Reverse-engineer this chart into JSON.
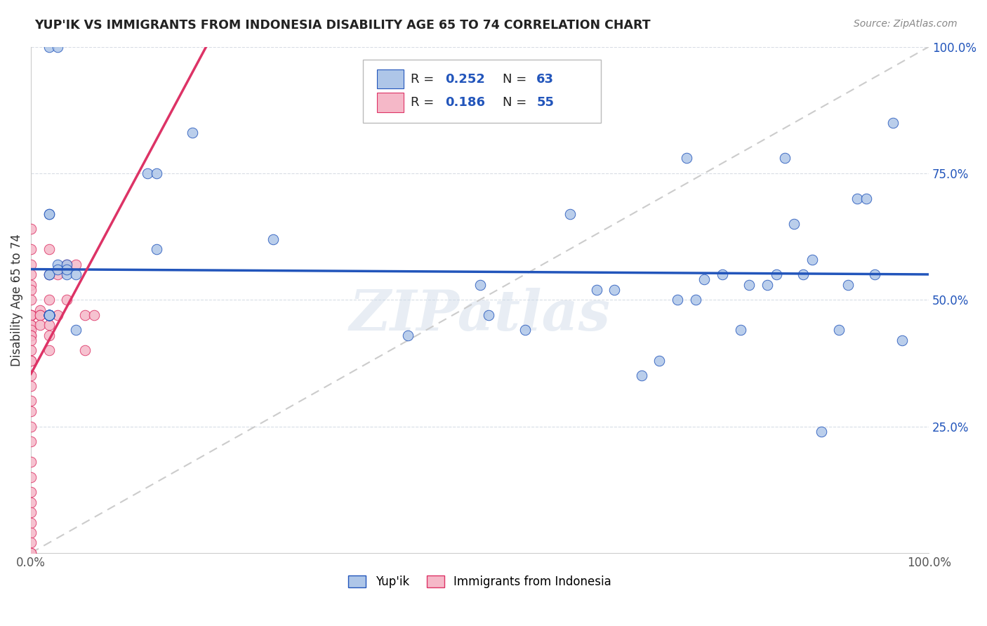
{
  "title": "YUP'IK VS IMMIGRANTS FROM INDONESIA DISABILITY AGE 65 TO 74 CORRELATION CHART",
  "source": "Source: ZipAtlas.com",
  "ylabel": "Disability Age 65 to 74",
  "xmin": 0.0,
  "xmax": 1.0,
  "ymin": 0.0,
  "ymax": 1.0,
  "series1_color": "#aec6e8",
  "series2_color": "#f5b8c8",
  "line1_color": "#2255bb",
  "line2_color": "#dd3366",
  "diagonal_color": "#cccccc",
  "watermark": "ZIPatlas",
  "series1_x": [
    0.13,
    0.14,
    0.02,
    0.03,
    0.02,
    0.02,
    0.03,
    0.04,
    0.04,
    0.05,
    0.02,
    0.02,
    0.03,
    0.04,
    0.05,
    0.14,
    0.18,
    0.27,
    0.42,
    0.5,
    0.51,
    0.55,
    0.6,
    0.63,
    0.65,
    0.68,
    0.7,
    0.72,
    0.74,
    0.75,
    0.77,
    0.79,
    0.8,
    0.82,
    0.83,
    0.85,
    0.86,
    0.87,
    0.88,
    0.9,
    0.91,
    0.92,
    0.93,
    0.94,
    0.96,
    0.97,
    0.02,
    0.02,
    0.02,
    0.02,
    0.02,
    0.02,
    0.02,
    0.02,
    0.02,
    0.02,
    0.02,
    0.02,
    0.02,
    0.02,
    0.02,
    0.73,
    0.84
  ],
  "series1_y": [
    0.75,
    0.75,
    1.0,
    1.0,
    0.67,
    0.67,
    0.57,
    0.57,
    0.55,
    0.55,
    0.55,
    0.55,
    0.56,
    0.56,
    0.44,
    0.6,
    0.83,
    0.62,
    0.43,
    0.53,
    0.47,
    0.44,
    0.67,
    0.52,
    0.52,
    0.35,
    0.38,
    0.5,
    0.5,
    0.54,
    0.55,
    0.44,
    0.53,
    0.53,
    0.55,
    0.65,
    0.55,
    0.58,
    0.24,
    0.44,
    0.53,
    0.7,
    0.7,
    0.55,
    0.85,
    0.42,
    0.47,
    0.47,
    0.47,
    0.47,
    0.47,
    0.47,
    0.47,
    0.47,
    0.47,
    0.47,
    0.47,
    0.47,
    0.47,
    0.47,
    0.47,
    0.78,
    0.78
  ],
  "series2_x": [
    0.0,
    0.0,
    0.0,
    0.0,
    0.0,
    0.0,
    0.0,
    0.0,
    0.0,
    0.0,
    0.0,
    0.0,
    0.0,
    0.0,
    0.0,
    0.0,
    0.0,
    0.0,
    0.0,
    0.0,
    0.0,
    0.0,
    0.0,
    0.0,
    0.0,
    0.0,
    0.0,
    0.0,
    0.0,
    0.0,
    0.0,
    0.0,
    0.0,
    0.0,
    0.0,
    0.0,
    0.01,
    0.01,
    0.01,
    0.01,
    0.02,
    0.02,
    0.02,
    0.02,
    0.02,
    0.02,
    0.02,
    0.03,
    0.03,
    0.04,
    0.04,
    0.05,
    0.06,
    0.06,
    0.07
  ],
  "series2_y": [
    0.64,
    0.6,
    0.57,
    0.55,
    0.53,
    0.52,
    0.5,
    0.47,
    0.47,
    0.47,
    0.47,
    0.45,
    0.45,
    0.44,
    0.43,
    0.43,
    0.42,
    0.4,
    0.38,
    0.38,
    0.35,
    0.33,
    0.3,
    0.28,
    0.25,
    0.22,
    0.18,
    0.15,
    0.12,
    0.1,
    0.08,
    0.06,
    0.04,
    0.02,
    0.0,
    0.0,
    0.48,
    0.47,
    0.47,
    0.45,
    0.6,
    0.55,
    0.5,
    0.47,
    0.45,
    0.43,
    0.4,
    0.55,
    0.47,
    0.57,
    0.5,
    0.57,
    0.47,
    0.4,
    0.47
  ]
}
